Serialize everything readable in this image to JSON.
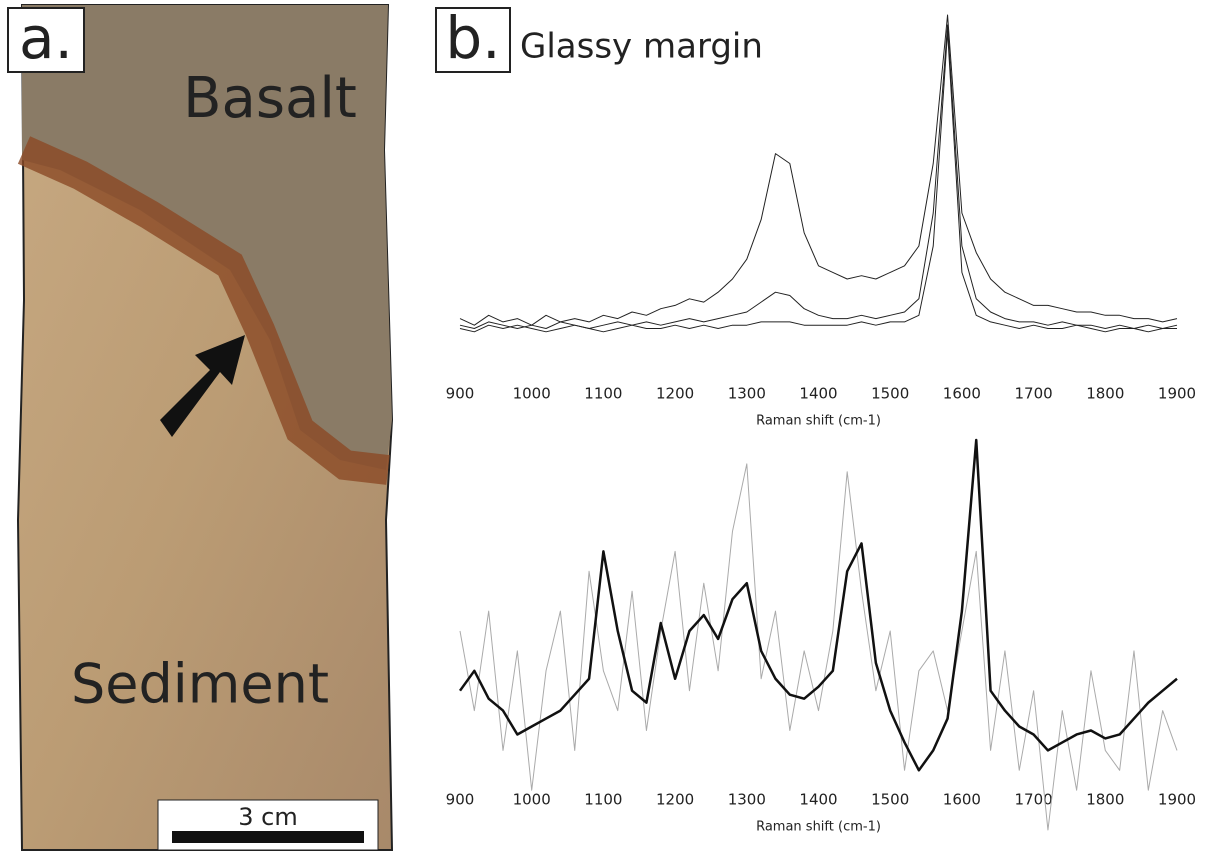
{
  "panel_a": {
    "label": "a.",
    "top_text": "Basalt",
    "bottom_text": "Sediment",
    "scale_bar": "3 cm"
  },
  "panel_b": {
    "label": "b."
  },
  "chart_data": [
    {
      "type": "line",
      "title": "Glassy margin",
      "x_label": "Raman shift (cm-1)",
      "x": [
        900,
        920,
        940,
        960,
        980,
        1000,
        1020,
        1040,
        1060,
        1080,
        1100,
        1120,
        1140,
        1160,
        1180,
        1200,
        1220,
        1240,
        1260,
        1280,
        1300,
        1320,
        1340,
        1360,
        1380,
        1400,
        1420,
        1440,
        1460,
        1480,
        1500,
        1520,
        1540,
        1560,
        1580,
        1600,
        1620,
        1640,
        1660,
        1680,
        1700,
        1720,
        1740,
        1760,
        1780,
        1800,
        1820,
        1840,
        1860,
        1880,
        1900
      ],
      "xlim": [
        900,
        1900
      ],
      "xticks": [
        900,
        1000,
        1100,
        1200,
        1300,
        1400,
        1500,
        1600,
        1700,
        1800,
        1900
      ],
      "ylim": [
        0,
        100
      ],
      "series": [
        {
          "color": "#222222",
          "values": [
            8,
            6,
            9,
            7,
            8,
            6,
            9,
            7,
            8,
            7,
            9,
            8,
            10,
            9,
            11,
            12,
            14,
            13,
            16,
            20,
            26,
            38,
            58,
            55,
            34,
            24,
            22,
            20,
            21,
            20,
            22,
            24,
            30,
            55,
            100,
            40,
            28,
            20,
            16,
            14,
            12,
            12,
            11,
            10,
            10,
            9,
            9,
            8,
            8,
            7,
            8
          ]
        },
        {
          "color": "#222222",
          "values": [
            6,
            5,
            7,
            6,
            5,
            6,
            5,
            7,
            6,
            5,
            6,
            7,
            6,
            7,
            6,
            7,
            8,
            7,
            8,
            9,
            10,
            13,
            16,
            15,
            11,
            9,
            8,
            8,
            9,
            8,
            9,
            10,
            14,
            40,
            97,
            30,
            14,
            10,
            8,
            7,
            7,
            6,
            7,
            6,
            6,
            5,
            6,
            5,
            6,
            5,
            6
          ]
        },
        {
          "color": "#222222",
          "values": [
            5,
            4,
            6,
            5,
            6,
            5,
            4,
            5,
            6,
            5,
            4,
            5,
            6,
            5,
            5,
            6,
            5,
            6,
            5,
            6,
            6,
            7,
            7,
            7,
            6,
            6,
            6,
            6,
            7,
            6,
            7,
            7,
            9,
            30,
            95,
            22,
            9,
            7,
            6,
            5,
            6,
            5,
            5,
            6,
            5,
            4,
            5,
            5,
            4,
            5,
            5
          ]
        }
      ]
    },
    {
      "type": "line",
      "x_label": "Raman shift (cm-1)",
      "x": [
        900,
        920,
        940,
        960,
        980,
        1000,
        1020,
        1040,
        1060,
        1080,
        1100,
        1120,
        1140,
        1160,
        1180,
        1200,
        1220,
        1240,
        1260,
        1280,
        1300,
        1320,
        1340,
        1360,
        1380,
        1400,
        1420,
        1440,
        1460,
        1480,
        1500,
        1520,
        1540,
        1560,
        1580,
        1600,
        1620,
        1640,
        1660,
        1680,
        1700,
        1720,
        1740,
        1760,
        1780,
        1800,
        1820,
        1840,
        1860,
        1880,
        1900
      ],
      "xlim": [
        900,
        1900
      ],
      "xticks": [
        900,
        1000,
        1100,
        1200,
        1300,
        1400,
        1500,
        1600,
        1700,
        1800,
        1900
      ],
      "ylim": [
        0,
        100
      ],
      "series": [
        {
          "color": "#aaaaaa",
          "width": 1,
          "values": [
            50,
            30,
            55,
            20,
            45,
            10,
            40,
            55,
            20,
            65,
            40,
            30,
            60,
            25,
            50,
            70,
            35,
            62,
            40,
            75,
            92,
            38,
            55,
            25,
            45,
            30,
            50,
            90,
            60,
            35,
            50,
            15,
            40,
            45,
            30,
            50,
            70,
            20,
            45,
            15,
            35,
            0,
            30,
            10,
            40,
            20,
            15,
            45,
            10,
            30,
            20
          ]
        },
        {
          "color": "#111111",
          "width": 2.5,
          "values": [
            35,
            40,
            33,
            30,
            24,
            26,
            28,
            30,
            34,
            38,
            70,
            50,
            35,
            32,
            52,
            38,
            50,
            54,
            48,
            58,
            62,
            45,
            38,
            34,
            33,
            36,
            40,
            65,
            72,
            42,
            30,
            22,
            15,
            20,
            28,
            55,
            98,
            35,
            30,
            26,
            24,
            20,
            22,
            24,
            25,
            23,
            24,
            28,
            32,
            35,
            38
          ]
        }
      ]
    }
  ]
}
